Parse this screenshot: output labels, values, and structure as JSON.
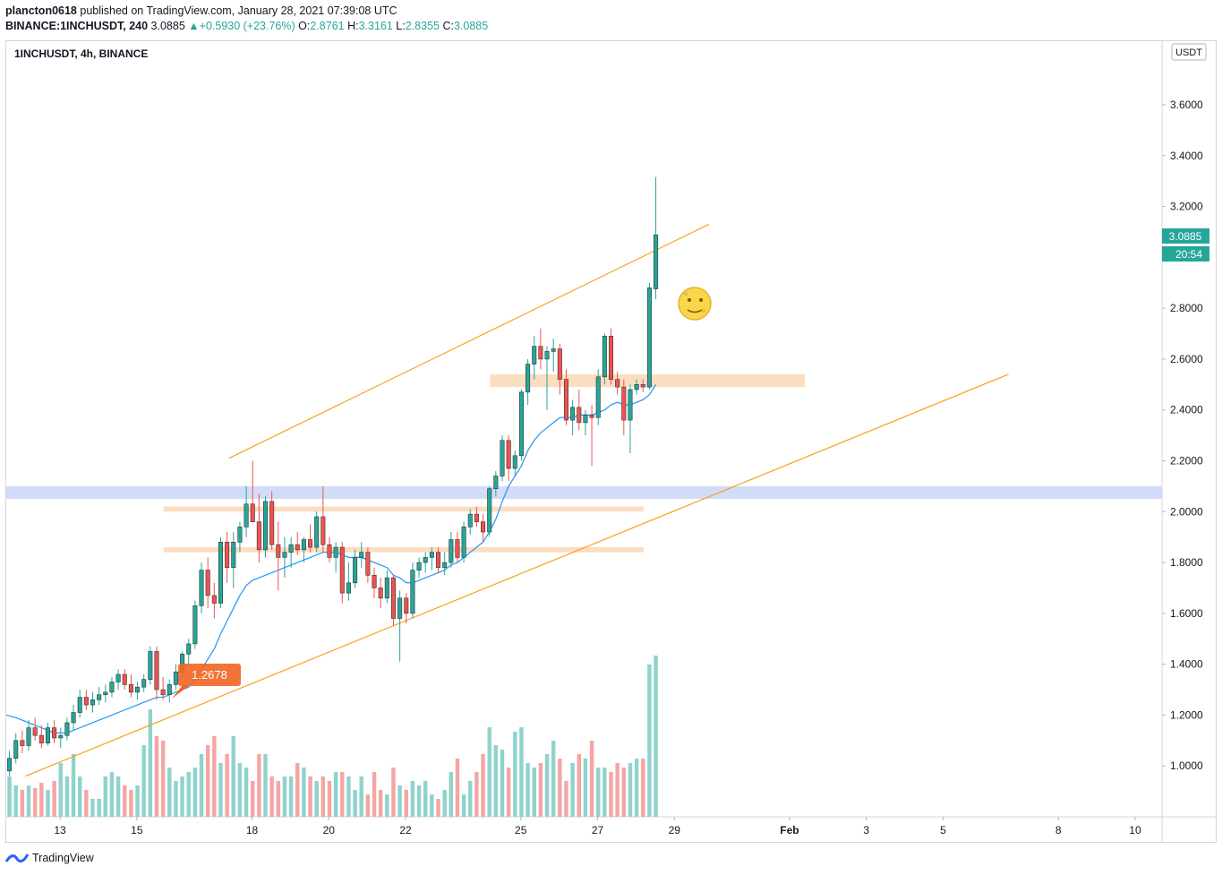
{
  "header": {
    "author": "plancton0618",
    "published_text": " published on TradingView.com, January 28, 2021 07:39:08 UTC"
  },
  "quote": {
    "symbol_tf": "BINANCE:1INCHUSDT, 240",
    "last": "3.0885",
    "change": "+0.5930 (+23.76%)",
    "o_label": "O:",
    "o": "2.8761",
    "h_label": "H:",
    "h": "3.3161",
    "l_label": "L:",
    "l": "2.8355",
    "c_label": "C:",
    "c": "3.0885"
  },
  "legend": {
    "title": "1INCHUSDT, 4h, BINANCE"
  },
  "currency": "USDT",
  "price_label": "3.0885",
  "countdown": "20:54",
  "annotation_price": "1.2678",
  "footer": {
    "brand": "TradingView"
  },
  "colors": {
    "up": "#26a69a",
    "down": "#ef5350",
    "vol_up": "#8fd3cc",
    "vol_down": "#f4a6a4",
    "trendline": "#f7a21b",
    "ema": "#2196f3",
    "zone_orange": "#fad7b5",
    "zone_blue": "#c9d7f7",
    "badge": "#f26522"
  },
  "chart_data": {
    "type": "candlestick",
    "symbol": "1INCHUSDT",
    "interval": "4h",
    "exchange": "BINANCE",
    "ylim": [
      0.8,
      3.85
    ],
    "y_ticks": [
      "1.0000",
      "1.2000",
      "1.4000",
      "1.6000",
      "1.8000",
      "2.0000",
      "2.2000",
      "2.4000",
      "2.6000",
      "2.8000",
      "3.0000",
      "3.2000",
      "3.4000",
      "3.6000"
    ],
    "x_ticks": [
      "13",
      "15",
      "18",
      "20",
      "22",
      "25",
      "27",
      "29",
      "Feb",
      "3",
      "5",
      "8",
      "10"
    ],
    "x_range_days": [
      11.6,
      41.7
    ],
    "candles": [
      {
        "o": 0.98,
        "h": 1.06,
        "l": 0.96,
        "c": 1.03
      },
      {
        "o": 1.03,
        "h": 1.13,
        "l": 1.01,
        "c": 1.1
      },
      {
        "o": 1.1,
        "h": 1.14,
        "l": 1.05,
        "c": 1.08
      },
      {
        "o": 1.08,
        "h": 1.18,
        "l": 1.06,
        "c": 1.15
      },
      {
        "o": 1.15,
        "h": 1.19,
        "l": 1.1,
        "c": 1.12
      },
      {
        "o": 1.12,
        "h": 1.16,
        "l": 1.07,
        "c": 1.09
      },
      {
        "o": 1.09,
        "h": 1.17,
        "l": 1.08,
        "c": 1.15
      },
      {
        "o": 1.15,
        "h": 1.18,
        "l": 1.09,
        "c": 1.11
      },
      {
        "o": 1.11,
        "h": 1.15,
        "l": 1.07,
        "c": 1.12
      },
      {
        "o": 1.12,
        "h": 1.19,
        "l": 1.1,
        "c": 1.17
      },
      {
        "o": 1.17,
        "h": 1.24,
        "l": 1.14,
        "c": 1.21
      },
      {
        "o": 1.21,
        "h": 1.3,
        "l": 1.19,
        "c": 1.27
      },
      {
        "o": 1.27,
        "h": 1.3,
        "l": 1.22,
        "c": 1.24
      },
      {
        "o": 1.24,
        "h": 1.29,
        "l": 1.21,
        "c": 1.26
      },
      {
        "o": 1.26,
        "h": 1.31,
        "l": 1.24,
        "c": 1.28
      },
      {
        "o": 1.28,
        "h": 1.32,
        "l": 1.25,
        "c": 1.29
      },
      {
        "o": 1.29,
        "h": 1.35,
        "l": 1.27,
        "c": 1.33
      },
      {
        "o": 1.33,
        "h": 1.38,
        "l": 1.3,
        "c": 1.36
      },
      {
        "o": 1.36,
        "h": 1.38,
        "l": 1.3,
        "c": 1.32
      },
      {
        "o": 1.32,
        "h": 1.36,
        "l": 1.27,
        "c": 1.29
      },
      {
        "o": 1.29,
        "h": 1.33,
        "l": 1.26,
        "c": 1.31
      },
      {
        "o": 1.31,
        "h": 1.36,
        "l": 1.29,
        "c": 1.34
      },
      {
        "o": 1.34,
        "h": 1.47,
        "l": 1.32,
        "c": 1.45
      },
      {
        "o": 1.45,
        "h": 1.47,
        "l": 1.26,
        "c": 1.3
      },
      {
        "o": 1.3,
        "h": 1.35,
        "l": 1.26,
        "c": 1.28
      },
      {
        "o": 1.28,
        "h": 1.34,
        "l": 1.25,
        "c": 1.32
      },
      {
        "o": 1.32,
        "h": 1.4,
        "l": 1.3,
        "c": 1.37
      },
      {
        "o": 1.37,
        "h": 1.45,
        "l": 1.35,
        "c": 1.44
      },
      {
        "o": 1.44,
        "h": 1.5,
        "l": 1.4,
        "c": 1.48
      },
      {
        "o": 1.48,
        "h": 1.65,
        "l": 1.46,
        "c": 1.63
      },
      {
        "o": 1.63,
        "h": 1.8,
        "l": 1.6,
        "c": 1.77
      },
      {
        "o": 1.77,
        "h": 1.82,
        "l": 1.62,
        "c": 1.67
      },
      {
        "o": 1.67,
        "h": 1.72,
        "l": 1.58,
        "c": 1.64
      },
      {
        "o": 1.64,
        "h": 1.9,
        "l": 1.62,
        "c": 1.88
      },
      {
        "o": 1.88,
        "h": 1.92,
        "l": 1.72,
        "c": 1.78
      },
      {
        "o": 1.78,
        "h": 1.92,
        "l": 1.7,
        "c": 1.88
      },
      {
        "o": 1.88,
        "h": 1.96,
        "l": 1.84,
        "c": 1.94
      },
      {
        "o": 1.94,
        "h": 2.1,
        "l": 1.9,
        "c": 2.03
      },
      {
        "o": 2.03,
        "h": 2.2,
        "l": 1.96,
        "c": 1.96
      },
      {
        "o": 1.96,
        "h": 2.07,
        "l": 1.8,
        "c": 1.85
      },
      {
        "o": 1.85,
        "h": 2.06,
        "l": 1.82,
        "c": 2.04
      },
      {
        "o": 2.04,
        "h": 2.08,
        "l": 1.85,
        "c": 1.87
      },
      {
        "o": 1.87,
        "h": 1.96,
        "l": 1.69,
        "c": 1.82
      },
      {
        "o": 1.82,
        "h": 1.9,
        "l": 1.74,
        "c": 1.84
      },
      {
        "o": 1.84,
        "h": 1.9,
        "l": 1.78,
        "c": 1.87
      },
      {
        "o": 1.87,
        "h": 1.92,
        "l": 1.83,
        "c": 1.85
      },
      {
        "o": 1.85,
        "h": 1.9,
        "l": 1.8,
        "c": 1.89
      },
      {
        "o": 1.89,
        "h": 1.95,
        "l": 1.84,
        "c": 1.86
      },
      {
        "o": 1.86,
        "h": 2.0,
        "l": 1.84,
        "c": 1.98
      },
      {
        "o": 1.98,
        "h": 2.1,
        "l": 1.84,
        "c": 1.87
      },
      {
        "o": 1.87,
        "h": 1.9,
        "l": 1.8,
        "c": 1.82
      },
      {
        "o": 1.82,
        "h": 1.88,
        "l": 1.76,
        "c": 1.86
      },
      {
        "o": 1.86,
        "h": 1.88,
        "l": 1.64,
        "c": 1.68
      },
      {
        "o": 1.68,
        "h": 1.8,
        "l": 1.65,
        "c": 1.72
      },
      {
        "o": 1.72,
        "h": 1.85,
        "l": 1.7,
        "c": 1.82
      },
      {
        "o": 1.82,
        "h": 1.88,
        "l": 1.78,
        "c": 1.84
      },
      {
        "o": 1.84,
        "h": 1.86,
        "l": 1.72,
        "c": 1.75
      },
      {
        "o": 1.75,
        "h": 1.78,
        "l": 1.66,
        "c": 1.7
      },
      {
        "o": 1.7,
        "h": 1.74,
        "l": 1.62,
        "c": 1.66
      },
      {
        "o": 1.66,
        "h": 1.77,
        "l": 1.64,
        "c": 1.74
      },
      {
        "o": 1.74,
        "h": 1.75,
        "l": 1.55,
        "c": 1.58
      },
      {
        "o": 1.58,
        "h": 1.69,
        "l": 1.41,
        "c": 1.66
      },
      {
        "o": 1.66,
        "h": 1.68,
        "l": 1.56,
        "c": 1.6
      },
      {
        "o": 1.6,
        "h": 1.8,
        "l": 1.58,
        "c": 1.77
      },
      {
        "o": 1.77,
        "h": 1.82,
        "l": 1.74,
        "c": 1.8
      },
      {
        "o": 1.8,
        "h": 1.84,
        "l": 1.76,
        "c": 1.82
      },
      {
        "o": 1.82,
        "h": 1.86,
        "l": 1.77,
        "c": 1.84
      },
      {
        "o": 1.84,
        "h": 1.86,
        "l": 1.76,
        "c": 1.78
      },
      {
        "o": 1.78,
        "h": 1.84,
        "l": 1.75,
        "c": 1.8
      },
      {
        "o": 1.8,
        "h": 1.92,
        "l": 1.78,
        "c": 1.89
      },
      {
        "o": 1.89,
        "h": 1.92,
        "l": 1.8,
        "c": 1.82
      },
      {
        "o": 1.82,
        "h": 1.96,
        "l": 1.8,
        "c": 1.94
      },
      {
        "o": 1.94,
        "h": 2.01,
        "l": 1.91,
        "c": 1.99
      },
      {
        "o": 1.99,
        "h": 2.02,
        "l": 1.94,
        "c": 1.96
      },
      {
        "o": 1.96,
        "h": 1.99,
        "l": 1.88,
        "c": 1.92
      },
      {
        "o": 1.92,
        "h": 2.1,
        "l": 1.9,
        "c": 2.09
      },
      {
        "o": 2.09,
        "h": 2.16,
        "l": 2.06,
        "c": 2.14
      },
      {
        "o": 2.14,
        "h": 2.3,
        "l": 2.12,
        "c": 2.28
      },
      {
        "o": 2.28,
        "h": 2.3,
        "l": 2.12,
        "c": 2.17
      },
      {
        "o": 2.17,
        "h": 2.24,
        "l": 2.14,
        "c": 2.22
      },
      {
        "o": 2.22,
        "h": 2.48,
        "l": 2.2,
        "c": 2.47
      },
      {
        "o": 2.47,
        "h": 2.6,
        "l": 2.42,
        "c": 2.58
      },
      {
        "o": 2.58,
        "h": 2.69,
        "l": 2.52,
        "c": 2.65
      },
      {
        "o": 2.65,
        "h": 2.72,
        "l": 2.56,
        "c": 2.6
      },
      {
        "o": 2.6,
        "h": 2.65,
        "l": 2.4,
        "c": 2.63
      },
      {
        "o": 2.63,
        "h": 2.68,
        "l": 2.55,
        "c": 2.64
      },
      {
        "o": 2.64,
        "h": 2.66,
        "l": 2.46,
        "c": 2.52
      },
      {
        "o": 2.52,
        "h": 2.56,
        "l": 2.34,
        "c": 2.36
      },
      {
        "o": 2.36,
        "h": 2.44,
        "l": 2.3,
        "c": 2.41
      },
      {
        "o": 2.41,
        "h": 2.48,
        "l": 2.32,
        "c": 2.35
      },
      {
        "o": 2.35,
        "h": 2.4,
        "l": 2.3,
        "c": 2.38
      },
      {
        "o": 2.38,
        "h": 2.42,
        "l": 2.18,
        "c": 2.37
      },
      {
        "o": 2.37,
        "h": 2.56,
        "l": 2.34,
        "c": 2.53
      },
      {
        "o": 2.53,
        "h": 2.7,
        "l": 2.5,
        "c": 2.69
      },
      {
        "o": 2.69,
        "h": 2.72,
        "l": 2.5,
        "c": 2.52
      },
      {
        "o": 2.52,
        "h": 2.55,
        "l": 2.46,
        "c": 2.49
      },
      {
        "o": 2.49,
        "h": 2.52,
        "l": 2.3,
        "c": 2.36
      },
      {
        "o": 2.36,
        "h": 2.5,
        "l": 2.23,
        "c": 2.48
      },
      {
        "o": 2.48,
        "h": 2.52,
        "l": 2.46,
        "c": 2.5
      },
      {
        "o": 2.5,
        "h": 2.52,
        "l": 2.47,
        "c": 2.49
      },
      {
        "o": 2.49,
        "h": 2.9,
        "l": 2.48,
        "c": 2.88
      },
      {
        "o": 2.8761,
        "h": 3.3161,
        "l": 2.8355,
        "c": 3.0885
      }
    ],
    "volume_relative": [
      0.45,
      0.35,
      0.3,
      0.35,
      0.32,
      0.38,
      0.3,
      0.4,
      0.6,
      0.45,
      0.7,
      0.45,
      0.3,
      0.2,
      0.2,
      0.45,
      0.5,
      0.45,
      0.35,
      0.3,
      0.35,
      0.8,
      1.2,
      0.9,
      0.85,
      0.55,
      0.4,
      0.45,
      0.5,
      0.55,
      0.7,
      0.8,
      0.9,
      0.6,
      0.7,
      0.9,
      0.6,
      0.55,
      0.4,
      0.7,
      0.7,
      0.45,
      0.4,
      0.45,
      0.45,
      0.6,
      0.55,
      0.45,
      0.4,
      0.45,
      0.4,
      0.5,
      0.5,
      0.45,
      0.3,
      0.45,
      0.25,
      0.5,
      0.3,
      0.25,
      0.55,
      0.35,
      0.3,
      0.4,
      0.35,
      0.4,
      0.25,
      0.2,
      0.3,
      0.5,
      0.65,
      0.25,
      0.4,
      0.5,
      0.7,
      1.0,
      0.8,
      0.75,
      0.55,
      0.95,
      1.0,
      0.6,
      0.55,
      0.6,
      0.7,
      0.85,
      0.65,
      0.4,
      0.6,
      0.7,
      0.65,
      0.85,
      0.55,
      0.55,
      0.5,
      0.6,
      0.55,
      0.6,
      0.65,
      0.65,
      1.7,
      1.8
    ],
    "ema": [
      1.2,
      1.19,
      1.18,
      1.17,
      1.16,
      1.15,
      1.14,
      1.13,
      1.13,
      1.13,
      1.14,
      1.15,
      1.16,
      1.17,
      1.18,
      1.19,
      1.2,
      1.21,
      1.22,
      1.23,
      1.24,
      1.25,
      1.26,
      1.27,
      1.27,
      1.28,
      1.29,
      1.3,
      1.31,
      1.34,
      1.38,
      1.42,
      1.46,
      1.52,
      1.57,
      1.62,
      1.67,
      1.71,
      1.73,
      1.74,
      1.75,
      1.76,
      1.77,
      1.78,
      1.79,
      1.8,
      1.81,
      1.82,
      1.83,
      1.84,
      1.84,
      1.84,
      1.83,
      1.82,
      1.82,
      1.82,
      1.81,
      1.8,
      1.79,
      1.78,
      1.75,
      1.74,
      1.72,
      1.72,
      1.73,
      1.74,
      1.75,
      1.76,
      1.77,
      1.79,
      1.8,
      1.82,
      1.84,
      1.86,
      1.88,
      1.92,
      1.97,
      2.04,
      2.1,
      2.14,
      2.18,
      2.24,
      2.28,
      2.31,
      2.33,
      2.35,
      2.37,
      2.37,
      2.37,
      2.38,
      2.38,
      2.38,
      2.39,
      2.4,
      2.42,
      2.43,
      2.42,
      2.42,
      2.43,
      2.44,
      2.46,
      2.5
    ],
    "trendlines": [
      {
        "from": {
          "day": 17.4,
          "price": 2.21
        },
        "to": {
          "day": 29.9,
          "price": 3.13
        }
      },
      {
        "from": {
          "day": 12.1,
          "price": 0.96
        },
        "to": {
          "day": 37.7,
          "price": 2.54
        }
      }
    ],
    "zones": [
      {
        "type": "resistance",
        "from_day": 24.2,
        "to_day": 32.4,
        "low": 2.49,
        "high": 2.54,
        "color": "orange"
      },
      {
        "type": "support",
        "from_day": 11.6,
        "to_day": 41.7,
        "low": 2.05,
        "high": 2.1,
        "color": "blue"
      },
      {
        "type": "range-high",
        "from_day": 15.7,
        "to_day": 28.2,
        "low": 2.0,
        "high": 2.02,
        "color": "orange"
      },
      {
        "type": "range-low",
        "from_day": 15.7,
        "to_day": 28.2,
        "low": 1.84,
        "high": 1.86,
        "color": "orange"
      }
    ],
    "annotation": {
      "label": "1.2678",
      "price": 1.2678
    }
  }
}
